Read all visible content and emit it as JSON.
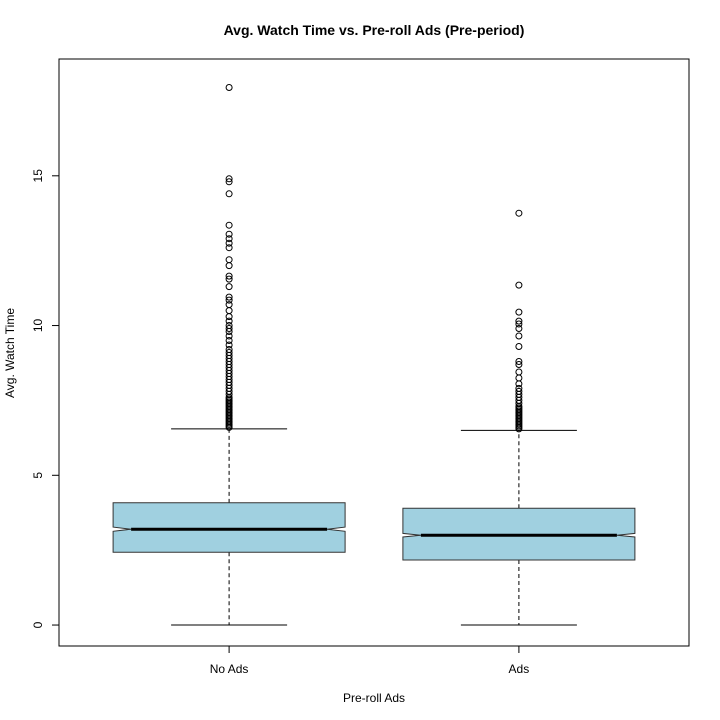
{
  "chart_data": {
    "type": "boxplot",
    "title": "Avg. Watch Time vs. Pre-roll Ads (Pre-period)",
    "xlabel": "Pre-roll Ads",
    "ylabel": "Avg. Watch Time",
    "ylim": [
      -0.7,
      18.9
    ],
    "yticks": [
      0,
      5,
      10,
      15
    ],
    "notched": true,
    "box_color": "#a0d0e0",
    "categories": [
      "No Ads",
      "Ads"
    ],
    "boxes": [
      {
        "name": "No Ads",
        "min": 0,
        "q1": 2.43,
        "median": 3.2,
        "q3": 4.08,
        "max": 6.55,
        "notch_low": 3.13,
        "notch_high": 3.27,
        "outliers": [
          6.6,
          6.65,
          6.7,
          6.75,
          6.8,
          6.85,
          6.9,
          6.95,
          7.0,
          7.05,
          7.1,
          7.15,
          7.2,
          7.25,
          7.3,
          7.35,
          7.4,
          7.45,
          7.5,
          7.55,
          7.6,
          7.7,
          7.8,
          7.9,
          8.0,
          8.1,
          8.2,
          8.3,
          8.4,
          8.5,
          8.6,
          8.7,
          8.8,
          8.9,
          9.0,
          9.1,
          9.2,
          9.35,
          9.5,
          9.65,
          9.8,
          9.9,
          10.0,
          10.15,
          10.3,
          10.5,
          10.7,
          10.85,
          10.95,
          11.3,
          11.55,
          11.65,
          12.0,
          12.2,
          12.6,
          12.75,
          12.9,
          13.05,
          13.35,
          14.4,
          14.8,
          14.9,
          17.95
        ]
      },
      {
        "name": "Ads",
        "min": 0,
        "q1": 2.17,
        "median": 3.0,
        "q3": 3.9,
        "max": 6.5,
        "notch_low": 2.94,
        "notch_high": 3.06,
        "outliers": [
          6.55,
          6.6,
          6.65,
          6.7,
          6.75,
          6.8,
          6.85,
          6.9,
          6.95,
          7.0,
          7.05,
          7.1,
          7.15,
          7.2,
          7.25,
          7.3,
          7.4,
          7.5,
          7.6,
          7.7,
          7.8,
          7.9,
          8.05,
          8.25,
          8.45,
          8.7,
          8.8,
          9.3,
          9.65,
          9.9,
          10.05,
          10.15,
          10.45,
          11.35,
          13.75
        ]
      }
    ]
  }
}
